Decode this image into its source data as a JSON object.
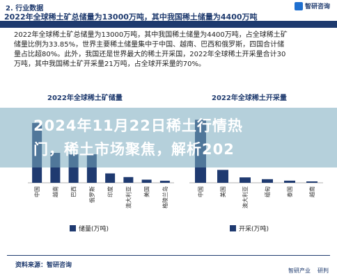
{
  "header": {
    "section_label": "2. 行业数据",
    "headline": "2022年全球稀土矿总储量为13000万吨，其中我国稀土储量为4400万吨",
    "logo_text": "智研咨询"
  },
  "paragraph": {
    "line1": "2022年全球稀土矿总储量为13000万吨，其中我国稀土储量为4400万吨，占全球稀土矿",
    "line2": "储量比例为33.85%，世界主要稀土储量集中于中国、越南、巴西和俄罗斯，四国合计储",
    "line3": "量占比超80%。此外，我国还是世界最大的稀土开采国，2022年全球稀土开采量合计30",
    "line4": "万吨，其中我国稀土矿开采量21万吨，占全球开采量的70%。"
  },
  "banner": {
    "line1": "2024年11月22日稀土行情热",
    "line2": "门，稀土市场聚焦，解析202"
  },
  "chart_data": [
    {
      "type": "bar",
      "title": "2022年全球稀土矿储量",
      "categories": [
        "中国",
        "越南",
        "巴西",
        "俄罗斯",
        "印度",
        "澳大利亚",
        "美国",
        "格陵兰岛"
      ],
      "series": [
        {
          "name": "储量(万吨)",
          "values": [
            4400,
            2200,
            2100,
            2100,
            690,
            420,
            230,
            150
          ]
        }
      ],
      "ylim": [
        0,
        4600
      ],
      "color": "#1f3a70"
    },
    {
      "type": "bar",
      "title": "2022年全球稀土开采量",
      "categories": [
        "中国",
        "美国",
        "澳大利亚",
        "缅甸",
        "泰国",
        "越南"
      ],
      "series": [
        {
          "name": "开采(万吨)",
          "values": [
            21,
            4.3,
            1.8,
            1.2,
            0.71,
            0.4
          ]
        }
      ],
      "ylim": [
        0,
        22
      ],
      "color": "#1f3a70"
    }
  ],
  "footer": {
    "source": "资料来源：智研咨询",
    "logo1": "智研产业",
    "logo2": "研判"
  }
}
